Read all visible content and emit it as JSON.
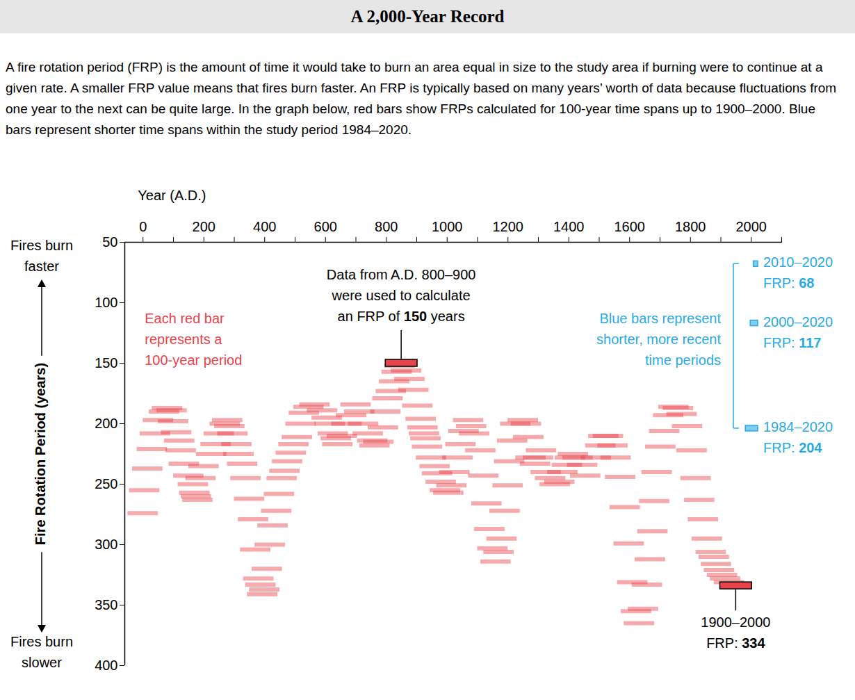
{
  "title": "A 2,000-Year Record",
  "subtitle": "A fire rotation period (FRP) is the amount of time it would take to burn an area equal in size to the study area if burning were to continue at a given rate. A smaller FRP value means that fires burn faster. An FRP is typically based on many years’ worth of data because fluctuations from one year to the next can be quite large. In the graph below, red bars show FRPs calculated for 100-year time spans up to 1900–2000. Blue bars represent shorter time spans within the study period 1984–2020.",
  "chart_data": {
    "type": "range_bar",
    "orientation": "horizontal",
    "x_label": "Year (A.D.)",
    "y_label": "Fire Rotation Period (years)",
    "y_label_top": [
      "Fires burn",
      "faster"
    ],
    "y_label_bottom": [
      "Fires burn",
      "slower"
    ],
    "xlim": [
      -60,
      2100
    ],
    "xticks": [
      0,
      200,
      400,
      600,
      800,
      1000,
      1200,
      1400,
      1600,
      1800,
      2000
    ],
    "xticks_minor": [
      100,
      300,
      500,
      700,
      900,
      1100,
      1300,
      1500,
      1700,
      1900,
      2100
    ],
    "ylim": [
      50,
      400
    ],
    "yticks": [
      50,
      100,
      150,
      200,
      250,
      300,
      350,
      400
    ],
    "red_bars": {
      "color": "#e8434a",
      "start": [
        -50,
        -45,
        -35,
        -20,
        -10,
        0,
        20,
        30,
        45,
        50,
        60,
        70,
        75,
        85,
        100,
        115,
        120,
        125,
        130,
        140,
        150,
        175,
        190,
        200,
        220,
        228,
        235,
        245,
        258,
        265,
        277,
        288,
        300,
        313,
        320,
        330,
        337,
        343,
        350,
        358,
        368,
        377,
        389,
        398,
        407,
        416,
        425,
        437,
        446,
        457,
        469,
        480,
        495,
        515,
        540,
        555,
        565,
        575,
        585,
        590,
        605,
        620,
        635,
        650,
        662,
        675,
        690,
        705,
        712,
        725,
        740,
        748,
        755,
        766,
        777,
        785,
        795,
        800,
        816,
        827,
        840,
        853,
        864,
        870,
        875,
        880,
        885,
        898,
        910,
        918,
        930,
        944,
        955,
        965,
        975,
        985,
        995,
        1005,
        1020,
        1030,
        1040,
        1060,
        1070,
        1080,
        1090,
        1100,
        1110,
        1120,
        1130,
        1140,
        1150,
        1155,
        1165,
        1175,
        1200,
        1210,
        1218,
        1225,
        1240,
        1250,
        1260,
        1275,
        1290,
        1305,
        1320,
        1330,
        1345,
        1355,
        1365,
        1380,
        1395,
        1405,
        1440,
        1455,
        1465,
        1480,
        1495,
        1505,
        1520,
        1535,
        1548,
        1560,
        1572,
        1582,
        1595,
        1608,
        1618,
        1626,
        1632,
        1640,
        1652,
        1665,
        1678,
        1695,
        1710,
        1722,
        1740,
        1755,
        1768,
        1780,
        1792,
        1805,
        1818,
        1828,
        1835,
        1845,
        1855,
        1865,
        1878,
        1900
      ],
      "end": [
        50,
        55,
        65,
        80,
        90,
        100,
        120,
        130,
        145,
        150,
        160,
        170,
        175,
        185,
        200,
        215,
        220,
        225,
        230,
        240,
        250,
        275,
        290,
        300,
        320,
        328,
        335,
        345,
        358,
        365,
        377,
        388,
        400,
        413,
        420,
        430,
        437,
        443,
        450,
        458,
        468,
        477,
        489,
        498,
        507,
        516,
        525,
        537,
        546,
        557,
        569,
        580,
        595,
        615,
        640,
        655,
        665,
        675,
        685,
        690,
        705,
        720,
        735,
        750,
        762,
        775,
        790,
        805,
        812,
        825,
        840,
        848,
        855,
        866,
        877,
        885,
        895,
        900,
        916,
        927,
        940,
        953,
        964,
        970,
        975,
        980,
        985,
        998,
        1010,
        1018,
        1030,
        1044,
        1055,
        1065,
        1075,
        1085,
        1095,
        1105,
        1120,
        1130,
        1140,
        1160,
        1170,
        1180,
        1190,
        1200,
        1210,
        1220,
        1230,
        1240,
        1250,
        1255,
        1265,
        1275,
        1300,
        1310,
        1318,
        1325,
        1340,
        1350,
        1360,
        1375,
        1390,
        1405,
        1420,
        1430,
        1445,
        1455,
        1465,
        1480,
        1495,
        1505,
        1540,
        1555,
        1565,
        1580,
        1595,
        1605,
        1620,
        1635,
        1648,
        1660,
        1672,
        1682,
        1695,
        1708,
        1718,
        1726,
        1732,
        1740,
        1752,
        1765,
        1778,
        1795,
        1810,
        1822,
        1840,
        1855,
        1868,
        1880,
        1892,
        1905,
        1918,
        1928,
        1935,
        1945,
        1955,
        1965,
        1978,
        2000
      ],
      "values": [
        274,
        255,
        237,
        221,
        208,
        197,
        190,
        187,
        189,
        198,
        207,
        214,
        222,
        233,
        243,
        250,
        257,
        260,
        263,
        245,
        235,
        225,
        217,
        208,
        200,
        197,
        202,
        208,
        217,
        225,
        233,
        245,
        262,
        279,
        304,
        328,
        333,
        341,
        337,
        320,
        300,
        284,
        272,
        258,
        245,
        239,
        231,
        224,
        217,
        211,
        200,
        191,
        186,
        184,
        189,
        195,
        200,
        208,
        212,
        217,
        210,
        200,
        193,
        184,
        190,
        200,
        208,
        214,
        218,
        215,
        203,
        190,
        179,
        173,
        165,
        157,
        152,
        150,
        156,
        163,
        172,
        185,
        196,
        203,
        208,
        212,
        219,
        228,
        235,
        241,
        248,
        255,
        257,
        251,
        240,
        228,
        217,
        206,
        197,
        202,
        208,
        222,
        243,
        266,
        287,
        303,
        314,
        306,
        295,
        272,
        251,
        231,
        214,
        200,
        197,
        200,
        211,
        228,
        233,
        228,
        222,
        240,
        245,
        250,
        248,
        240,
        234,
        228,
        225,
        228,
        234,
        243,
        228,
        218,
        210,
        210,
        218,
        228,
        244,
        269,
        299,
        331,
        355,
        365,
        353,
        333,
        312,
        289,
        264,
        240,
        219,
        206,
        193,
        186,
        187,
        192,
        202,
        222,
        245,
        263,
        279,
        295,
        306,
        310,
        316,
        321,
        325,
        328,
        331,
        334
      ],
      "note": [
        "Each red bar",
        "represents a",
        "100-year period"
      ]
    },
    "blue_bars": {
      "color": "#29abe2",
      "start": [
        2010,
        2000,
        1984
      ],
      "end": [
        2020,
        2020,
        2020
      ],
      "values": [
        68,
        117,
        204
      ],
      "labels": [
        "2010–2020",
        "2000–2020",
        "1984–2020"
      ],
      "value_prefix": "FRP: ",
      "note": [
        "Blue bars represent",
        "shorter, more recent",
        "time periods"
      ]
    },
    "highlights": [
      {
        "start": 800,
        "end": 900,
        "value": 150,
        "lines": [
          "Data from A.D. 800–900",
          "were used to calculate"
        ],
        "value_before": "an FRP of ",
        "value_after": " years"
      },
      {
        "start": 1900,
        "end": 2000,
        "value": 334,
        "lines": [
          "1900–2000"
        ],
        "value_before": "FRP: "
      }
    ]
  }
}
